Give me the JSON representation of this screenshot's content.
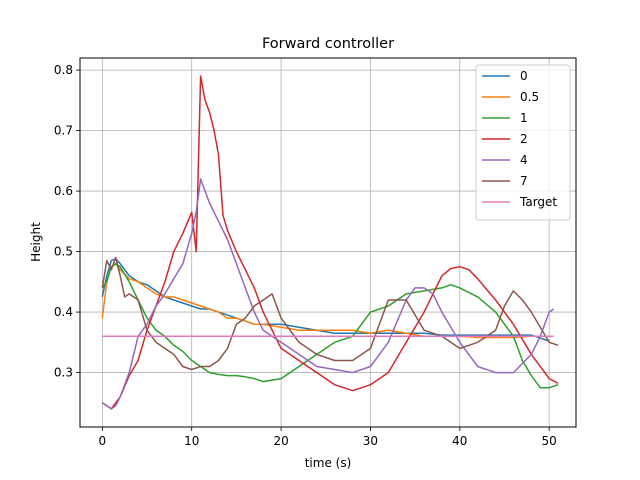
{
  "chart_data": {
    "type": "line",
    "title": "Forward controller",
    "xlabel": "time (s)",
    "ylabel": "Height",
    "xlim": [
      -2.5,
      53
    ],
    "ylim": [
      0.21,
      0.82
    ],
    "xticks": [
      0,
      10,
      20,
      30,
      40,
      50
    ],
    "yticks": [
      0.3,
      0.4,
      0.5,
      0.6,
      0.7,
      0.8
    ],
    "grid": true,
    "legend_position": "top-right",
    "series": [
      {
        "name": "0",
        "color": "#1f77b4",
        "x": [
          0,
          0.5,
          1,
          1.5,
          2,
          3,
          4,
          5,
          6,
          7,
          8,
          9,
          10,
          11,
          12,
          13,
          14,
          15,
          16,
          17,
          18,
          20,
          22,
          24,
          26,
          28,
          30,
          32,
          34,
          36,
          38,
          40,
          42,
          44,
          46,
          48,
          50
        ],
        "y": [
          0.425,
          0.46,
          0.485,
          0.488,
          0.48,
          0.46,
          0.45,
          0.445,
          0.435,
          0.425,
          0.42,
          0.415,
          0.41,
          0.405,
          0.405,
          0.4,
          0.395,
          0.39,
          0.385,
          0.38,
          0.38,
          0.38,
          0.375,
          0.37,
          0.365,
          0.365,
          0.365,
          0.365,
          0.365,
          0.365,
          0.362,
          0.362,
          0.362,
          0.362,
          0.362,
          0.362,
          0.352
        ]
      },
      {
        "name": "0.5",
        "color": "#ff7f0e",
        "x": [
          0,
          0.5,
          1,
          1.5,
          2,
          3,
          4,
          5,
          6,
          7,
          8,
          9,
          10,
          11,
          12,
          13,
          14,
          15,
          16,
          17,
          18,
          20,
          22,
          24,
          26,
          28,
          30,
          32,
          34,
          36,
          38,
          40,
          42,
          44,
          46,
          48,
          50
        ],
        "y": [
          0.39,
          0.45,
          0.475,
          0.48,
          0.47,
          0.455,
          0.45,
          0.44,
          0.43,
          0.425,
          0.425,
          0.42,
          0.415,
          0.41,
          0.405,
          0.4,
          0.39,
          0.39,
          0.385,
          0.38,
          0.38,
          0.375,
          0.37,
          0.37,
          0.37,
          0.37,
          0.365,
          0.37,
          0.365,
          0.36,
          0.36,
          0.36,
          0.358,
          0.358,
          0.358,
          0.36,
          0.36
        ]
      },
      {
        "name": "1",
        "color": "#2ca02c",
        "x": [
          0,
          0.5,
          1,
          1.5,
          2,
          3,
          4,
          5,
          6,
          7,
          8,
          9,
          10,
          11,
          12,
          13,
          14,
          15,
          16,
          17,
          18,
          20,
          22,
          24,
          26,
          28,
          30,
          32,
          34,
          36,
          38,
          39,
          40,
          42,
          44,
          46,
          47,
          48,
          49,
          50,
          51
        ],
        "y": [
          0.44,
          0.45,
          0.475,
          0.48,
          0.475,
          0.45,
          0.42,
          0.39,
          0.37,
          0.36,
          0.345,
          0.335,
          0.32,
          0.31,
          0.3,
          0.297,
          0.295,
          0.295,
          0.293,
          0.29,
          0.285,
          0.29,
          0.31,
          0.33,
          0.35,
          0.36,
          0.4,
          0.41,
          0.43,
          0.435,
          0.44,
          0.445,
          0.44,
          0.425,
          0.4,
          0.36,
          0.32,
          0.295,
          0.275,
          0.275,
          0.28
        ]
      },
      {
        "name": "2",
        "color": "#d62728",
        "x": [
          0,
          0.5,
          1,
          1.5,
          2,
          3,
          4,
          5,
          6,
          7,
          8,
          9,
          10,
          10.5,
          11,
          11.5,
          12,
          12.5,
          13,
          13.5,
          14,
          15,
          16,
          17,
          18,
          20,
          22,
          24,
          26,
          28,
          30,
          32,
          34,
          36,
          37,
          38,
          39,
          40,
          41,
          42,
          44,
          46,
          48,
          50,
          51
        ],
        "y": [
          0.25,
          0.245,
          0.24,
          0.25,
          0.26,
          0.295,
          0.32,
          0.37,
          0.41,
          0.45,
          0.5,
          0.53,
          0.565,
          0.5,
          0.79,
          0.75,
          0.73,
          0.7,
          0.66,
          0.56,
          0.535,
          0.5,
          0.47,
          0.44,
          0.4,
          0.34,
          0.32,
          0.3,
          0.28,
          0.27,
          0.28,
          0.3,
          0.35,
          0.4,
          0.43,
          0.46,
          0.472,
          0.475,
          0.47,
          0.455,
          0.42,
          0.38,
          0.33,
          0.29,
          0.282
        ]
      },
      {
        "name": "4",
        "color": "#9467bd",
        "x": [
          0,
          0.5,
          1,
          1.5,
          2,
          3,
          4,
          5,
          6,
          7,
          8,
          9,
          10,
          10.5,
          11,
          11.5,
          12,
          13,
          14,
          15,
          16,
          17,
          18,
          20,
          22,
          24,
          26,
          28,
          30,
          32,
          34,
          35,
          36,
          37,
          38,
          40,
          42,
          44,
          46,
          48,
          49,
          50,
          50.5
        ],
        "y": [
          0.25,
          0.245,
          0.24,
          0.245,
          0.26,
          0.3,
          0.36,
          0.38,
          0.41,
          0.43,
          0.455,
          0.48,
          0.53,
          0.565,
          0.62,
          0.6,
          0.58,
          0.55,
          0.52,
          0.48,
          0.44,
          0.4,
          0.37,
          0.35,
          0.33,
          0.31,
          0.305,
          0.3,
          0.31,
          0.35,
          0.42,
          0.44,
          0.44,
          0.43,
          0.4,
          0.35,
          0.31,
          0.3,
          0.3,
          0.33,
          0.36,
          0.4,
          0.405
        ]
      },
      {
        "name": "7",
        "color": "#8c564b",
        "x": [
          0,
          0.5,
          1,
          1.5,
          2,
          2.5,
          3,
          4,
          5,
          6,
          7,
          8,
          9,
          10,
          11,
          12,
          13,
          14,
          15,
          16,
          17,
          18,
          19,
          20,
          22,
          24,
          26,
          28,
          30,
          32,
          34,
          36,
          38,
          40,
          42,
          44,
          45,
          46,
          47,
          48,
          50,
          51
        ],
        "y": [
          0.44,
          0.485,
          0.47,
          0.49,
          0.46,
          0.425,
          0.43,
          0.42,
          0.37,
          0.35,
          0.34,
          0.33,
          0.31,
          0.305,
          0.31,
          0.31,
          0.32,
          0.34,
          0.38,
          0.39,
          0.41,
          0.42,
          0.43,
          0.39,
          0.35,
          0.33,
          0.32,
          0.32,
          0.34,
          0.42,
          0.42,
          0.37,
          0.36,
          0.34,
          0.35,
          0.37,
          0.41,
          0.435,
          0.42,
          0.4,
          0.35,
          0.345
        ]
      },
      {
        "name": "Target",
        "color": "#e377c2",
        "x": [
          0,
          50.5
        ],
        "y": [
          0.36,
          0.36
        ]
      }
    ]
  }
}
